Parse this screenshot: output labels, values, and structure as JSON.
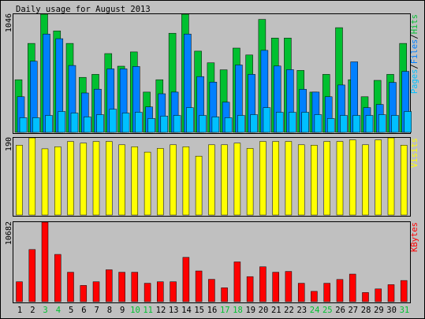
{
  "chart_data": {
    "type": "bar",
    "title": "Daily usage for August 2013",
    "categories": [
      "1",
      "2",
      "3",
      "4",
      "5",
      "6",
      "7",
      "8",
      "9",
      "10",
      "11",
      "12",
      "13",
      "14",
      "15",
      "16",
      "17",
      "18",
      "19",
      "20",
      "21",
      "22",
      "23",
      "24",
      "25",
      "26",
      "27",
      "28",
      "29",
      "30",
      "31"
    ],
    "weekend_days": [
      "3",
      "4",
      "10",
      "11",
      "17",
      "18",
      "24",
      "25",
      "31"
    ],
    "colors": {
      "hits": "#00c030",
      "files": "#0080ff",
      "pages": "#00c0ff",
      "visits": "#ffff00",
      "kbytes": "#ff0000",
      "weekday_label": "#000000",
      "weekend_label": "#00c030"
    },
    "panels": [
      {
        "id": "hits-files-pages",
        "max_label": "1046",
        "legend": [
          {
            "text": "Hits",
            "color": "#00c030"
          },
          {
            "text": "Files",
            "color": "#0080ff"
          },
          {
            "text": "Pages",
            "color": "#00c0ff"
          }
        ],
        "ylim": [
          0,
          1046
        ],
        "series": [
          {
            "name": "Hits",
            "values": [
              466,
              787,
              1046,
              898,
              787,
              487,
              513,
              697,
              586,
              712,
              356,
              466,
              877,
              1046,
              719,
              616,
              554,
              746,
              685,
              1000,
              835,
              835,
              548,
              356,
              513,
              927,
              466,
              315,
              460,
              513,
              787
            ]
          },
          {
            "name": "Files",
            "values": [
              315,
              630,
              870,
              829,
              592,
              349,
              382,
              562,
              562,
              583,
              225,
              342,
              356,
              870,
              494,
              445,
              267,
              596,
              513,
              726,
              587,
              555,
              381,
              356,
              315,
              419,
              624,
              219,
              247,
              442,
              540
            ]
          },
          {
            "name": "Pages",
            "values": [
              130,
              130,
              150,
              185,
              171,
              137,
              157,
              205,
              171,
              178,
              123,
              144,
              150,
              219,
              150,
              137,
              130,
              150,
              157,
              219,
              178,
              178,
              178,
              157,
              123,
              150,
              150,
              150,
              157,
              150,
              185
            ]
          }
        ]
      },
      {
        "id": "visits",
        "max_label": "190",
        "legend": [
          {
            "text": "Visits",
            "color": "#ffff00"
          }
        ],
        "ylim": [
          0,
          190
        ],
        "series": [
          {
            "name": "Visits",
            "values": [
              172,
              190,
              163,
              168,
              181,
              177,
              181,
              181,
              173,
              168,
              155,
              164,
              173,
              168,
              145,
              173,
              173,
              177,
              164,
              181,
              181,
              181,
              173,
              172,
              181,
              181,
              185,
              173,
              185,
              190,
              172
            ]
          }
        ]
      },
      {
        "id": "kbytes",
        "max_label": "10682",
        "legend": [
          {
            "text": "KBytes",
            "color": "#ff0000"
          }
        ],
        "ylim": [
          0,
          10682
        ],
        "series": [
          {
            "name": "KBytes",
            "values": [
              2678,
              7000,
              10682,
              6345,
              3954,
              2177,
              2678,
              4286,
              3954,
              3954,
              2474,
              2678,
              2678,
              5954,
              4121,
              3000,
              1862,
              5345,
              3367,
              4680,
              3954,
              4063,
              2474,
              1383,
              2474,
              2985,
              3703,
              1227,
              1716,
              2289,
              2845
            ]
          }
        ]
      }
    ]
  }
}
